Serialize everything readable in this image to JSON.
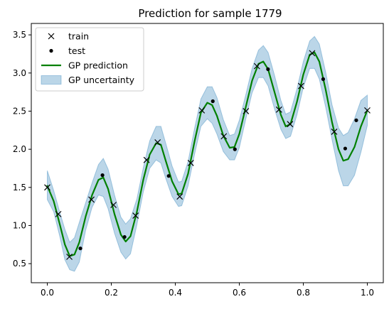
{
  "chart_data": {
    "type": "line",
    "title": "Prediction for sample 1779",
    "xlabel": "",
    "ylabel": "",
    "xlim": [
      -0.05,
      1.05
    ],
    "ylim": [
      0.25,
      3.65
    ],
    "x_ticks": [
      0.0,
      0.2,
      0.4,
      0.6,
      0.8,
      1.0
    ],
    "x_tick_labels": [
      "0.0",
      "0.2",
      "0.4",
      "0.6",
      "0.8",
      "1.0"
    ],
    "y_ticks": [
      0.5,
      1.0,
      1.5,
      2.0,
      2.5,
      3.0,
      3.5
    ],
    "y_tick_labels": [
      "0.5",
      "1.0",
      "1.5",
      "2.0",
      "2.5",
      "3.0",
      "3.5"
    ],
    "grid": false,
    "legend_position": "upper-left",
    "series": [
      {
        "name": "train",
        "kind": "scatter-x",
        "color": "#000000",
        "x": [
          0.0,
          0.0345,
          0.069,
          0.1379,
          0.2069,
          0.2759,
          0.3103,
          0.3448,
          0.4138,
          0.4483,
          0.4828,
          0.5517,
          0.6207,
          0.6552,
          0.7241,
          0.7586,
          0.7931,
          0.8276,
          0.8966,
          1.0
        ],
        "y": [
          1.5,
          1.15,
          0.59,
          1.34,
          1.27,
          1.13,
          1.86,
          2.09,
          1.38,
          1.82,
          2.51,
          2.17,
          2.5,
          3.09,
          2.52,
          2.33,
          2.83,
          3.26,
          2.23,
          2.51
        ]
      },
      {
        "name": "test",
        "kind": "scatter-dot",
        "color": "#000000",
        "x": [
          0.1034,
          0.1724,
          0.2414,
          0.3793,
          0.5172,
          0.5862,
          0.6897,
          0.8621,
          0.931,
          0.9655
        ],
        "y": [
          0.7,
          1.66,
          0.85,
          1.65,
          2.63,
          2.0,
          3.05,
          2.92,
          2.01,
          2.38
        ]
      },
      {
        "name": "GP prediction",
        "kind": "line",
        "color": "#008000",
        "x": [
          0.0,
          0.02,
          0.04,
          0.055,
          0.07,
          0.085,
          0.1,
          0.12,
          0.14,
          0.16,
          0.175,
          0.19,
          0.21,
          0.23,
          0.245,
          0.26,
          0.28,
          0.3,
          0.32,
          0.34,
          0.355,
          0.37,
          0.39,
          0.41,
          0.42,
          0.44,
          0.46,
          0.48,
          0.5,
          0.515,
          0.53,
          0.55,
          0.57,
          0.585,
          0.6,
          0.62,
          0.64,
          0.66,
          0.675,
          0.69,
          0.71,
          0.73,
          0.745,
          0.76,
          0.78,
          0.8,
          0.82,
          0.835,
          0.85,
          0.87,
          0.89,
          0.91,
          0.925,
          0.94,
          0.96,
          0.98,
          1.0
        ],
        "y": [
          1.52,
          1.32,
          1.0,
          0.75,
          0.6,
          0.62,
          0.78,
          1.12,
          1.4,
          1.6,
          1.63,
          1.48,
          1.15,
          0.88,
          0.79,
          0.86,
          1.18,
          1.6,
          1.93,
          2.08,
          2.06,
          1.85,
          1.58,
          1.41,
          1.42,
          1.68,
          2.1,
          2.48,
          2.61,
          2.58,
          2.44,
          2.18,
          2.02,
          2.03,
          2.2,
          2.55,
          2.9,
          3.12,
          3.15,
          3.05,
          2.75,
          2.45,
          2.3,
          2.33,
          2.62,
          2.98,
          3.24,
          3.27,
          3.15,
          2.78,
          2.35,
          2.0,
          1.85,
          1.87,
          2.03,
          2.3,
          2.51
        ]
      },
      {
        "name": "GP uncertainty",
        "kind": "band",
        "color": "#1f77b4",
        "x": [
          0.0,
          0.02,
          0.04,
          0.055,
          0.07,
          0.085,
          0.1,
          0.12,
          0.14,
          0.16,
          0.175,
          0.19,
          0.21,
          0.23,
          0.245,
          0.26,
          0.28,
          0.3,
          0.32,
          0.34,
          0.355,
          0.37,
          0.39,
          0.41,
          0.42,
          0.44,
          0.46,
          0.48,
          0.5,
          0.515,
          0.53,
          0.55,
          0.57,
          0.585,
          0.6,
          0.62,
          0.64,
          0.66,
          0.675,
          0.69,
          0.71,
          0.73,
          0.745,
          0.76,
          0.78,
          0.8,
          0.82,
          0.835,
          0.85,
          0.87,
          0.89,
          0.91,
          0.925,
          0.94,
          0.96,
          0.98,
          1.0
        ],
        "lower": [
          1.34,
          1.18,
          0.84,
          0.55,
          0.42,
          0.4,
          0.52,
          0.94,
          1.24,
          1.4,
          1.38,
          1.22,
          0.9,
          0.65,
          0.56,
          0.63,
          1.01,
          1.44,
          1.75,
          1.86,
          1.82,
          1.62,
          1.38,
          1.25,
          1.26,
          1.52,
          1.93,
          2.3,
          2.4,
          2.34,
          2.2,
          1.97,
          1.86,
          1.86,
          2.02,
          2.39,
          2.74,
          2.94,
          2.94,
          2.83,
          2.53,
          2.26,
          2.14,
          2.17,
          2.45,
          2.81,
          3.06,
          3.06,
          2.92,
          2.55,
          2.12,
          1.72,
          1.52,
          1.52,
          1.66,
          1.96,
          2.31
        ],
        "upper": [
          1.72,
          1.46,
          1.16,
          0.95,
          0.78,
          0.84,
          1.04,
          1.3,
          1.56,
          1.8,
          1.88,
          1.74,
          1.4,
          1.11,
          1.02,
          1.09,
          1.35,
          1.76,
          2.11,
          2.3,
          2.3,
          2.08,
          1.78,
          1.57,
          1.58,
          1.84,
          2.27,
          2.66,
          2.82,
          2.82,
          2.68,
          2.39,
          2.18,
          2.2,
          2.38,
          2.71,
          3.06,
          3.3,
          3.36,
          3.27,
          2.97,
          2.64,
          2.46,
          2.49,
          2.79,
          3.15,
          3.42,
          3.48,
          3.38,
          3.01,
          2.58,
          2.28,
          2.18,
          2.22,
          2.4,
          2.64,
          2.71
        ]
      }
    ]
  }
}
